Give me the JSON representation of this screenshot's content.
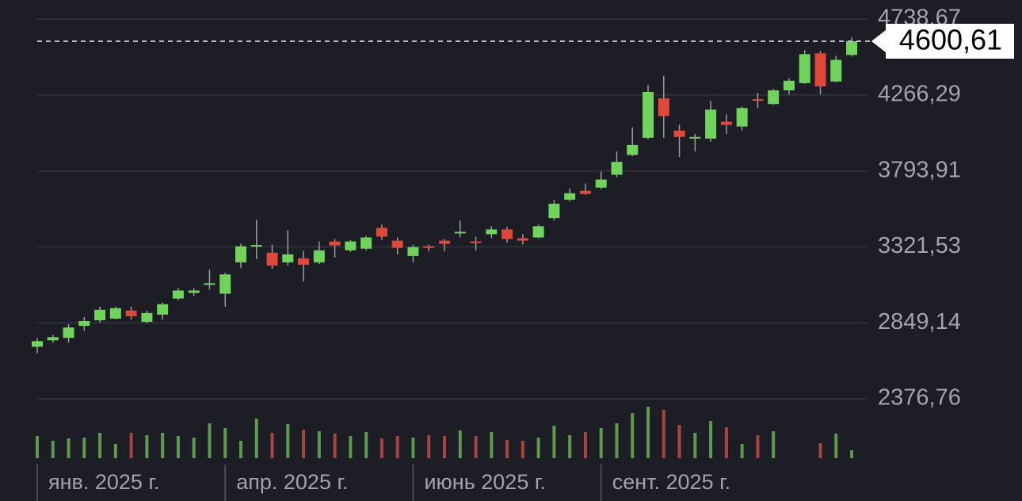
{
  "chart_data": {
    "type": "candlestick",
    "categories": [
      "янв. 2025 г.",
      null,
      null,
      null,
      null,
      null,
      null,
      null,
      null,
      null,
      null,
      null,
      "апр. 2025 г.",
      null,
      null,
      null,
      null,
      null,
      null,
      null,
      null,
      null,
      null,
      null,
      "июнь 2025 г.",
      null,
      null,
      null,
      null,
      null,
      null,
      null,
      null,
      null,
      null,
      null,
      "сент. 2025 г.",
      null,
      null,
      null,
      null,
      null,
      null,
      null,
      null,
      null,
      null,
      null,
      null,
      null,
      null,
      null,
      null
    ],
    "open": [
      2700,
      2740,
      2755,
      2830,
      2865,
      2875,
      2925,
      2855,
      2900,
      3000,
      3035,
      3090,
      3030,
      3225,
      3328,
      3285,
      3225,
      3250,
      3225,
      3355,
      3300,
      3310,
      3440,
      3360,
      3265,
      3325,
      3360,
      3405,
      3355,
      3400,
      3430,
      3375,
      3380,
      3500,
      3615,
      3670,
      3690,
      3770,
      3893,
      4000,
      4245,
      4045,
      4000,
      3995,
      4100,
      4070,
      4240,
      4210,
      4295,
      4340,
      4525,
      4350,
      4515
    ],
    "high": [
      2755,
      2775,
      2840,
      2885,
      2950,
      2950,
      2950,
      2925,
      2975,
      3065,
      3065,
      3180,
      3160,
      3340,
      3490,
      3335,
      3425,
      3295,
      3355,
      3370,
      3365,
      3390,
      3460,
      3380,
      3335,
      3335,
      3370,
      3485,
      3385,
      3450,
      3445,
      3400,
      3460,
      3615,
      3685,
      3715,
      3790,
      3915,
      4065,
      4330,
      4385,
      4080,
      4025,
      4230,
      4145,
      4195,
      4280,
      4305,
      4370,
      4545,
      4540,
      4510,
      4625
    ],
    "low": [
      2660,
      2725,
      2725,
      2800,
      2850,
      2870,
      2870,
      2845,
      2870,
      2990,
      3015,
      3055,
      2950,
      3190,
      3245,
      3185,
      3205,
      3105,
      3215,
      3255,
      3290,
      3300,
      3365,
      3275,
      3225,
      3295,
      3295,
      3380,
      3300,
      3375,
      3350,
      3335,
      3375,
      3485,
      3605,
      3645,
      3680,
      3755,
      3885,
      3990,
      4000,
      3880,
      3915,
      3975,
      4025,
      4045,
      4185,
      4205,
      4270,
      4335,
      4270,
      4345,
      4505
    ],
    "close": [
      2735,
      2760,
      2820,
      2860,
      2930,
      2940,
      2890,
      2910,
      2965,
      3050,
      3050,
      3095,
      3150,
      3325,
      3333,
      3205,
      3275,
      3210,
      3300,
      3330,
      3355,
      3380,
      3385,
      3315,
      3320,
      3315,
      3340,
      3415,
      3345,
      3430,
      3370,
      3360,
      3450,
      3590,
      3655,
      3650,
      3740,
      3850,
      3955,
      4285,
      4135,
      4005,
      4005,
      4175,
      4080,
      4185,
      4230,
      4295,
      4355,
      4520,
      4320,
      4485,
      4600.61
    ],
    "volume": [
      28,
      22,
      25,
      26,
      32,
      18,
      32,
      29,
      32,
      28,
      26,
      44,
      38,
      22,
      50,
      32,
      43,
      36,
      34,
      31,
      28,
      33,
      25,
      28,
      26,
      29,
      28,
      35,
      28,
      33,
      23,
      22,
      26,
      41,
      29,
      33,
      38,
      44,
      57,
      65,
      61,
      42,
      32,
      47,
      39,
      18,
      29,
      34,
      null,
      null,
      19,
      31,
      10
    ],
    "up_color": "#6fd35c",
    "down_color": "#e0483a",
    "volume_up_color": "#5c9a50",
    "volume_down_color": "#a54740",
    "ylim": [
      2376.76,
      4738.67
    ],
    "yticks": [
      {
        "value": 2376.76,
        "label": "2376,76"
      },
      {
        "value": 2849.14,
        "label": "2849,14"
      },
      {
        "value": 3321.53,
        "label": "3321,53"
      },
      {
        "value": 3793.91,
        "label": "3793,91"
      },
      {
        "value": 4266.29,
        "label": "4266,29"
      },
      {
        "value": 4738.67,
        "label": "4738,67"
      }
    ],
    "grid": true,
    "last_price": {
      "value": 4600.61,
      "label": "4600,61"
    }
  }
}
